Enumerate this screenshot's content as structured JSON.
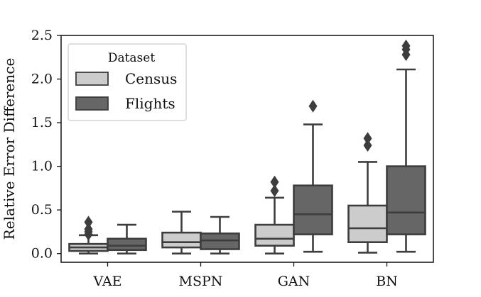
{
  "chart_data": {
    "type": "box",
    "title": "",
    "xlabel": "",
    "ylabel": "Relative Error Difference",
    "ylim": [
      -0.1,
      2.5
    ],
    "yticks": [
      "0.0",
      "0.5",
      "1.0",
      "1.5",
      "2.0",
      "2.5"
    ],
    "categories": [
      "VAE",
      "MSPN",
      "GAN",
      "BN"
    ],
    "grid": false,
    "legend": {
      "title": "Dataset",
      "placement": "top-left",
      "entries": [
        "Census",
        "Flights"
      ]
    },
    "colors": {
      "Census": "#cccccc",
      "Flights": "#666666",
      "edge": "#3d3d3d",
      "axis": "#111111"
    },
    "series": [
      {
        "name": "Census",
        "boxes": [
          {
            "whisker_low": 0.0,
            "q1": 0.03,
            "median": 0.07,
            "q3": 0.11,
            "whisker_high": 0.21,
            "outliers": [
              0.22,
              0.25,
              0.28,
              0.36
            ]
          },
          {
            "whisker_low": 0.0,
            "q1": 0.07,
            "median": 0.13,
            "q3": 0.24,
            "whisker_high": 0.48,
            "outliers": []
          },
          {
            "whisker_low": 0.0,
            "q1": 0.09,
            "median": 0.17,
            "q3": 0.33,
            "whisker_high": 0.64,
            "outliers": [
              0.72,
              0.82
            ]
          },
          {
            "whisker_low": 0.01,
            "q1": 0.13,
            "median": 0.29,
            "q3": 0.55,
            "whisker_high": 1.05,
            "outliers": [
              1.24,
              1.32
            ]
          }
        ]
      },
      {
        "name": "Flights",
        "boxes": [
          {
            "whisker_low": 0.0,
            "q1": 0.04,
            "median": 0.09,
            "q3": 0.17,
            "whisker_high": 0.33,
            "outliers": []
          },
          {
            "whisker_low": 0.0,
            "q1": 0.05,
            "median": 0.15,
            "q3": 0.23,
            "whisker_high": 0.42,
            "outliers": []
          },
          {
            "whisker_low": 0.02,
            "q1": 0.22,
            "median": 0.45,
            "q3": 0.78,
            "whisker_high": 1.48,
            "outliers": [
              1.69
            ]
          },
          {
            "whisker_low": 0.02,
            "q1": 0.22,
            "median": 0.47,
            "q3": 1.0,
            "whisker_high": 2.11,
            "outliers": [
              2.28,
              2.34,
              2.38
            ]
          }
        ]
      }
    ]
  }
}
